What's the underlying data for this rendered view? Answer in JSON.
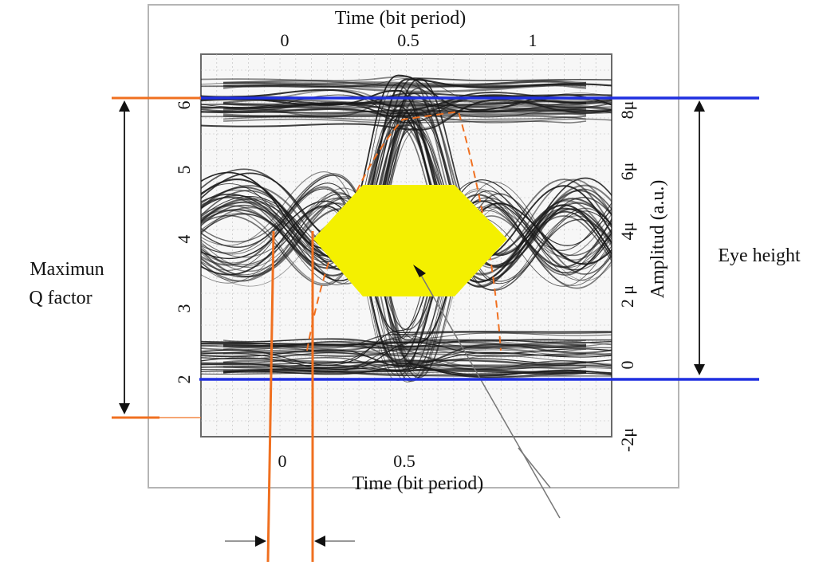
{
  "chart_data": {
    "type": "line",
    "top_axis": {
      "label": "Time (bit period)",
      "ticks": [
        "0",
        "0.5",
        "1"
      ]
    },
    "bottom_axis": {
      "label": "Time (bit period)",
      "ticks": [
        "0",
        "0.5"
      ]
    },
    "left_axis": {
      "ticks": [
        "2",
        "3",
        "4",
        "5",
        "6"
      ],
      "range": [
        1.5,
        6.3
      ]
    },
    "right_axis": {
      "label": "Amplitud (a.u.)",
      "ticks": [
        "-2μ",
        "0",
        "2 μ",
        "4μ",
        "6μ",
        "8μ"
      ]
    },
    "annotations": {
      "left": [
        "Maximun",
        "Q factor"
      ],
      "right": "Eye height"
    },
    "colors": {
      "traces": "#1a1a1a",
      "eye_mask": "#f4f000",
      "eye_height_lines": "#1f2fe0",
      "q_factor_markers": "#f07020",
      "grid": "#bdbdbd"
    },
    "series": [
      {
        "kind": "high-level",
        "level": 5.7
      },
      {
        "kind": "low-level",
        "level": 2.5
      },
      {
        "kind": "crossing",
        "level": 4.0
      }
    ]
  }
}
